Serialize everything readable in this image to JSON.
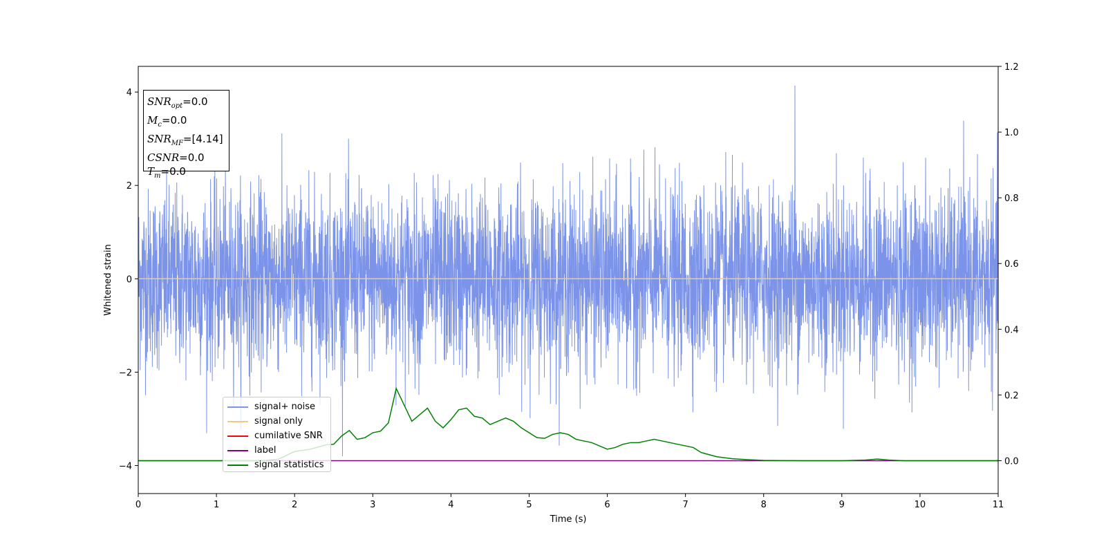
{
  "chart_data": {
    "type": "line",
    "xlabel": "Time (s)",
    "ylabel": "Whitened strain",
    "xlim": [
      0,
      11
    ],
    "ylim": [
      -4.6,
      4.55
    ],
    "y2lim": [
      -0.1,
      1.2
    ],
    "x_ticks": [
      "0",
      "1",
      "2",
      "3",
      "4",
      "5",
      "6",
      "7",
      "8",
      "9",
      "10",
      "11"
    ],
    "y_ticks": [
      "4",
      "2",
      "0",
      "−2",
      "−4"
    ],
    "y_tick_values": [
      4,
      2,
      0,
      -2,
      -4
    ],
    "y2_ticks": [
      "1.2",
      "1.0",
      "0.8",
      "0.6",
      "0.4",
      "0.2",
      "0.0"
    ],
    "y2_tick_values": [
      1.2,
      1.0,
      0.8,
      0.6,
      0.4,
      0.2,
      0.0
    ],
    "grid": false,
    "legend_placement": "lower-left",
    "annotation": {
      "snr_opt": {
        "label": "SNR",
        "sub": "opt",
        "value": "=0.0"
      },
      "mc": {
        "label": "M",
        "sub": "c",
        "value": "=0.0"
      },
      "snr_mf": {
        "label": "SNR",
        "sub": "MF",
        "value": "=[4.14]"
      },
      "csnr": {
        "label": "CSNR",
        "value": "=0.0"
      },
      "tm": {
        "label": "T",
        "sub": "m",
        "value": "=0.0"
      }
    },
    "series": [
      {
        "name": "signal+ noise",
        "color": "#7b93e8",
        "axis": "left",
        "description_values": "gaussian noise, std ~1, peak 4.14 near t=8.4"
      },
      {
        "name": "signal only",
        "color": "#f5c97a",
        "axis": "left",
        "values_const": 0
      },
      {
        "name": "cumilative SNR",
        "color": "#ff0000",
        "axis": "right"
      },
      {
        "name": "label",
        "color": "#800080",
        "axis": "right",
        "values_const": 0
      },
      {
        "name": "signal statistics",
        "color": "#008000",
        "axis": "right",
        "x": [
          0,
          1.0,
          1.6,
          1.8,
          2.0,
          2.2,
          2.4,
          2.5,
          2.6,
          2.7,
          2.8,
          2.9,
          3.0,
          3.1,
          3.2,
          3.3,
          3.4,
          3.5,
          3.6,
          3.7,
          3.8,
          3.9,
          4.0,
          4.1,
          4.2,
          4.3,
          4.4,
          4.5,
          4.6,
          4.7,
          4.8,
          4.9,
          5.0,
          5.1,
          5.2,
          5.3,
          5.4,
          5.5,
          5.6,
          5.7,
          5.8,
          5.9,
          6.0,
          6.1,
          6.2,
          6.3,
          6.4,
          6.5,
          6.6,
          6.7,
          6.8,
          6.9,
          7.0,
          7.1,
          7.2,
          7.4,
          7.6,
          7.8,
          8.0,
          8.5,
          9.0,
          9.3,
          9.45,
          9.6,
          9.8,
          10.2,
          11.0
        ],
        "y": [
          0.0,
          0.0,
          0.0,
          0.005,
          0.028,
          0.035,
          0.048,
          0.05,
          0.075,
          0.092,
          0.065,
          0.07,
          0.085,
          0.09,
          0.115,
          0.22,
          0.17,
          0.12,
          0.14,
          0.16,
          0.12,
          0.1,
          0.125,
          0.155,
          0.16,
          0.135,
          0.13,
          0.11,
          0.12,
          0.13,
          0.12,
          0.1,
          0.085,
          0.07,
          0.068,
          0.08,
          0.085,
          0.08,
          0.065,
          0.06,
          0.055,
          0.045,
          0.035,
          0.04,
          0.05,
          0.055,
          0.055,
          0.06,
          0.065,
          0.06,
          0.055,
          0.05,
          0.045,
          0.04,
          0.025,
          0.012,
          0.006,
          0.003,
          0.001,
          0.0,
          0.0,
          0.002,
          0.005,
          0.002,
          0.0,
          0.0,
          0.0
        ]
      }
    ]
  },
  "legend": {
    "items": [
      {
        "label": "signal+ noise",
        "color": "#7b93e8"
      },
      {
        "label": "signal only",
        "color": "#f5c97a"
      },
      {
        "label": "cumilative SNR",
        "color": "#ff0000"
      },
      {
        "label": "label",
        "color": "#800080"
      },
      {
        "label": "signal statistics",
        "color": "#008000"
      }
    ]
  }
}
